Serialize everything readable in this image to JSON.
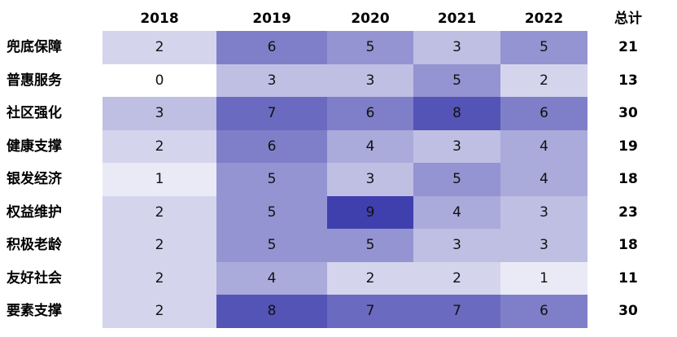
{
  "chart_data": {
    "type": "heatmap",
    "title": "",
    "xlabel": "",
    "ylabel": "",
    "columns": [
      "2018",
      "2019",
      "2020",
      "2021",
      "2022"
    ],
    "total_label": "总计",
    "rows": [
      {
        "name": "兜底保障",
        "values": [
          2,
          6,
          5,
          3,
          5
        ],
        "total": 21
      },
      {
        "name": "普惠服务",
        "values": [
          0,
          3,
          3,
          5,
          2
        ],
        "total": 13
      },
      {
        "name": "社区强化",
        "values": [
          3,
          7,
          6,
          8,
          6
        ],
        "total": 30
      },
      {
        "name": "健康支撑",
        "values": [
          2,
          6,
          4,
          3,
          4
        ],
        "total": 19
      },
      {
        "name": "银发经济",
        "values": [
          1,
          5,
          3,
          5,
          4
        ],
        "total": 18
      },
      {
        "name": "权益维护",
        "values": [
          2,
          5,
          9,
          4,
          3
        ],
        "total": 23
      },
      {
        "name": "积极老龄",
        "values": [
          2,
          5,
          5,
          3,
          3
        ],
        "total": 18
      },
      {
        "name": "友好社会",
        "values": [
          2,
          4,
          2,
          2,
          1
        ],
        "total": 11
      },
      {
        "name": "要素支撑",
        "values": [
          2,
          8,
          7,
          7,
          6
        ],
        "total": 30
      }
    ],
    "color_scale": {
      "min": 0,
      "max": 9,
      "low": "#ffffff",
      "high": "#3f3fae"
    },
    "grid": false,
    "legend": "none"
  }
}
